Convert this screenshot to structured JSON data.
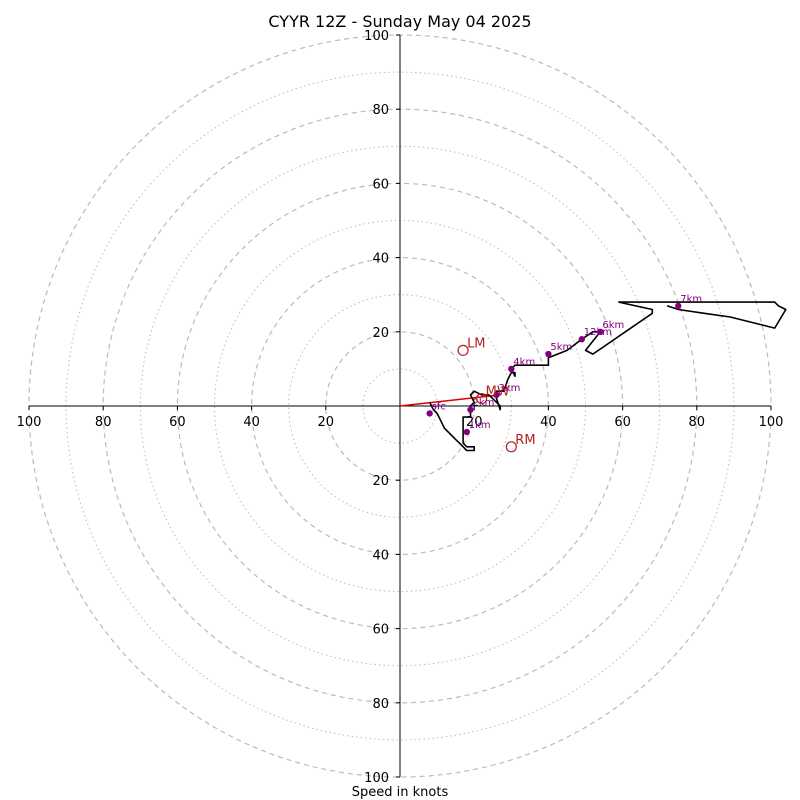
{
  "chart_data": {
    "type": "scatter",
    "title": "CYYR 12Z - Sunday May 04 2025",
    "xlabel": "Speed in knots",
    "ylabel": "",
    "xlim": [
      -100,
      100
    ],
    "ylim": [
      -100,
      100
    ],
    "ring_major": [
      20,
      40,
      60,
      80,
      100
    ],
    "ring_minor": [
      10,
      30,
      50,
      70,
      90
    ],
    "x_ticks": [
      "100",
      "80",
      "60",
      "40",
      "20",
      "20",
      "40",
      "60",
      "80",
      "100"
    ],
    "y_ticks": [
      "100",
      "80",
      "60",
      "40",
      "20",
      "20",
      "40",
      "60",
      "80",
      "100"
    ],
    "hodograph": {
      "color": "#000000",
      "points": [
        [
          8,
          1
        ],
        [
          9,
          -1
        ],
        [
          10,
          -2
        ],
        [
          11,
          -4
        ],
        [
          12,
          -6
        ],
        [
          13,
          -7
        ],
        [
          15,
          -9
        ],
        [
          16,
          -10
        ],
        [
          17,
          -11
        ],
        [
          18,
          -12
        ],
        [
          20,
          -12
        ],
        [
          20,
          -11
        ],
        [
          18,
          -11
        ],
        [
          17,
          -10
        ],
        [
          17,
          -6
        ],
        [
          17,
          -3
        ],
        [
          19,
          -3
        ],
        [
          19,
          0
        ],
        [
          20,
          1
        ],
        [
          19,
          3
        ],
        [
          20,
          4
        ],
        [
          22,
          3
        ],
        [
          24,
          3
        ],
        [
          26,
          1
        ],
        [
          27,
          0
        ],
        [
          27,
          -1
        ],
        [
          26,
          2
        ],
        [
          26,
          4
        ],
        [
          28,
          4
        ],
        [
          29,
          7
        ],
        [
          30,
          9
        ],
        [
          31,
          9
        ],
        [
          31,
          8
        ],
        [
          30,
          10
        ],
        [
          31,
          11
        ],
        [
          40,
          11
        ],
        [
          40,
          13
        ],
        [
          45,
          15
        ],
        [
          49,
          18
        ],
        [
          52,
          20
        ],
        [
          54,
          20
        ],
        [
          50,
          15
        ],
        [
          52,
          14
        ],
        [
          68,
          25
        ],
        [
          68,
          26
        ],
        [
          59,
          28
        ],
        [
          71,
          28
        ],
        [
          72,
          28
        ],
        [
          98,
          28
        ],
        [
          101,
          28
        ],
        [
          102,
          27
        ],
        [
          104,
          26
        ],
        [
          101,
          21
        ],
        [
          89,
          24
        ],
        [
          82,
          25
        ],
        [
          75,
          26
        ],
        [
          72,
          27
        ]
      ]
    },
    "shear_vector": {
      "color": "#dd0000",
      "from": [
        0,
        0
      ],
      "to": [
        27,
        3
      ]
    },
    "height_markers": [
      {
        "label": "sfc",
        "x": 8,
        "y": -2
      },
      {
        "label": "1km",
        "x": 18,
        "y": -7
      },
      {
        "label": "2km",
        "x": 19,
        "y": -1
      },
      {
        "label": "3km",
        "x": 26,
        "y": 3
      },
      {
        "label": "4km",
        "x": 30,
        "y": 10
      },
      {
        "label": "5km",
        "x": 40,
        "y": 14
      },
      {
        "label": "12km",
        "x": 49,
        "y": 18
      },
      {
        "label": "6km",
        "x": 54,
        "y": 20
      },
      {
        "label": "7km",
        "x": 75,
        "y": 27
      }
    ],
    "storm_motion": [
      {
        "label": "LM",
        "x": 17,
        "y": 15
      },
      {
        "label": "MW",
        "x": 22,
        "y": 2
      },
      {
        "label": "RM",
        "x": 30,
        "y": -11
      }
    ],
    "colors": {
      "rings": "#bbbbbb",
      "markers": "#800080",
      "storm": "#b22222",
      "axes": "#000000"
    }
  }
}
